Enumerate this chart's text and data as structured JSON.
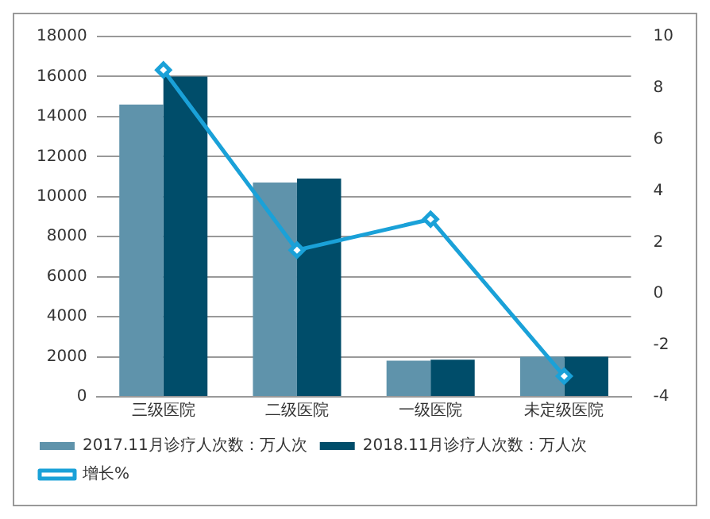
{
  "chart_data": {
    "type": "bar",
    "categories": [
      "三级医院",
      "二级医院",
      "一级医院",
      "未定级医院"
    ],
    "series": [
      {
        "name": "2017.11月诊疗人次数：万人次",
        "color": "#5f93ab",
        "values": [
          14600,
          10700,
          1800,
          2000
        ]
      },
      {
        "name": "2018.11月诊疗人次数：万人次",
        "color": "#004d6a",
        "values": [
          16000,
          10900,
          1850,
          2000
        ]
      },
      {
        "name": "增长%",
        "type": "line",
        "axis": "y2",
        "color": "#1aa1d8",
        "values": [
          8.7,
          1.7,
          2.9,
          -3.2
        ],
        "marker": "diamond"
      }
    ],
    "ylim": [
      0,
      18000
    ],
    "yticks": [
      0,
      2000,
      4000,
      6000,
      8000,
      10000,
      12000,
      14000,
      16000,
      18000
    ],
    "y2lim": [
      -4,
      10
    ],
    "y2ticks": [
      -4,
      -2,
      0,
      2,
      4,
      6,
      8,
      10
    ],
    "grid": "y",
    "legend": "bottom"
  }
}
